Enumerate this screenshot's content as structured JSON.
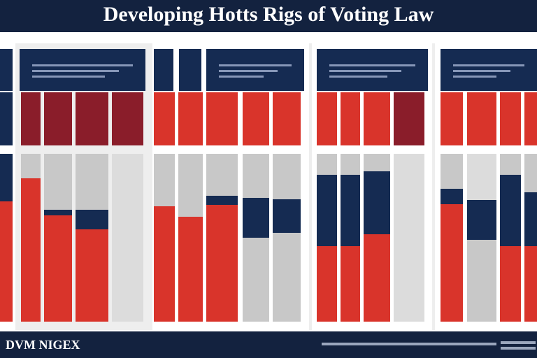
{
  "header": {
    "title": "Developing Hotts Rigs of Voting Law"
  },
  "footer": {
    "brand": "DVM NIGEX"
  }
}
